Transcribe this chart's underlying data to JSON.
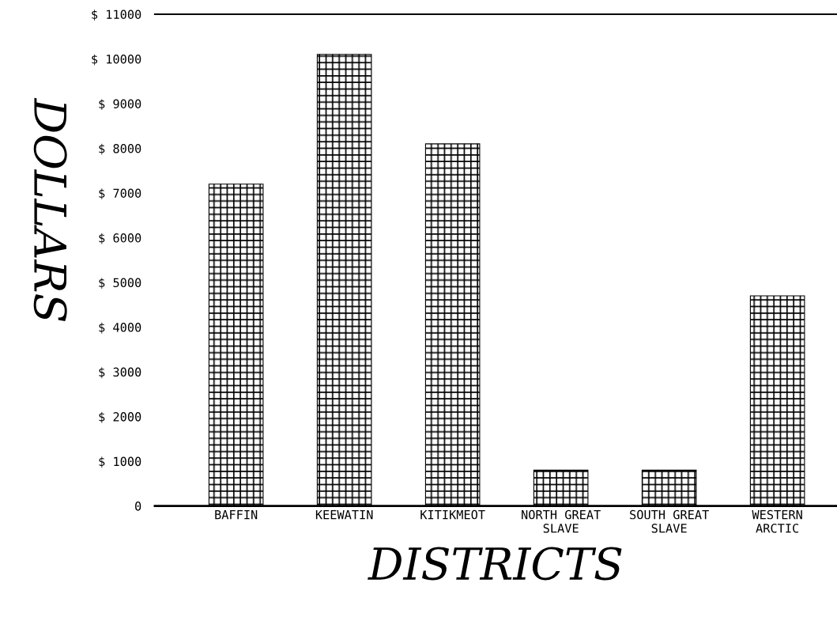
{
  "chart_data": {
    "type": "bar",
    "xlabel": "DISTRICTS",
    "ylabel": "DOLLARS",
    "categories": [
      "BAFFIN",
      "KEEWATIN",
      "KITIKMEOT",
      "NORTH GREAT\nSLAVE",
      "SOUTH GREAT\nSLAVE",
      "WESTERN\nARCTIC"
    ],
    "values": [
      7200,
      10100,
      8100,
      800,
      800,
      4700
    ],
    "color": "#000000",
    "ylim": [
      0,
      11000
    ],
    "yticks": [
      0,
      {
        "value": 1000,
        "label": "$ 1000"
      },
      {
        "value": 2000,
        "label": "$ 2000"
      },
      {
        "value": 3000,
        "label": "$ 3000"
      },
      {
        "value": 4000,
        "label": "$ 4000"
      },
      {
        "value": 5000,
        "label": "$ 5000"
      },
      {
        "value": 6000,
        "label": "$ 6000"
      },
      {
        "value": 7000,
        "label": "$ 7000"
      },
      {
        "value": 8000,
        "label": "$ 8000"
      },
      {
        "value": 9000,
        "label": "$ 9000"
      },
      {
        "value": 10000,
        "label": "$ 10000"
      },
      {
        "value": 11000,
        "label": "$ 11000"
      }
    ],
    "grid": false
  }
}
